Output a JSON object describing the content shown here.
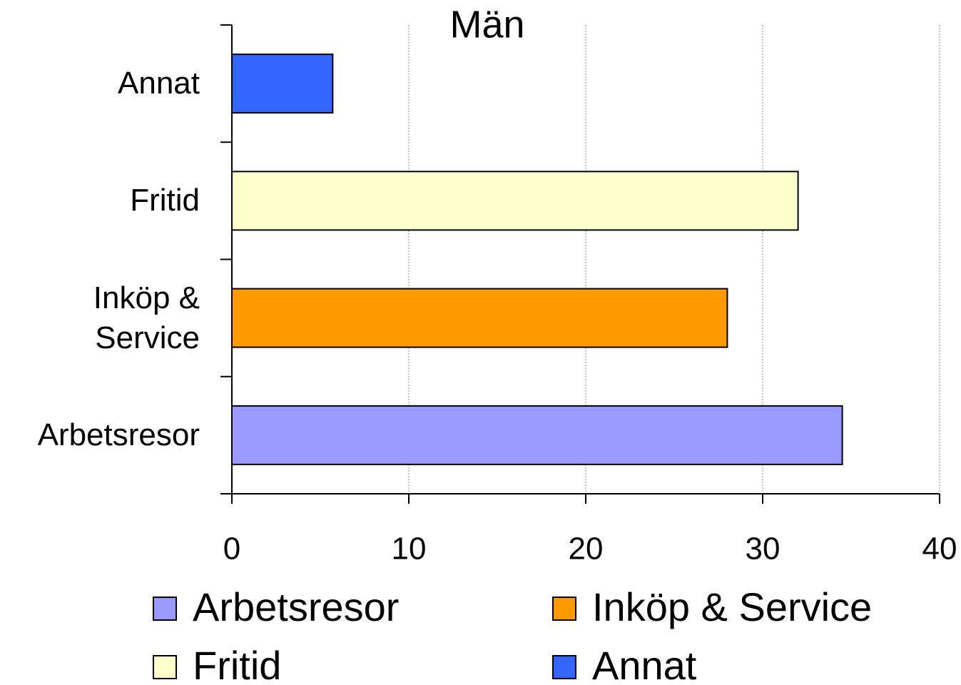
{
  "chart_data": {
    "type": "barh",
    "title": "Män",
    "categories": [
      "Arbetsresor",
      "Inköp & Service",
      "Fritid",
      "Annat"
    ],
    "values": [
      34.5,
      28,
      32,
      5.7
    ],
    "colors": [
      "#9999ff",
      "#ff9900",
      "#ffffcc",
      "#3366ff"
    ],
    "xlim": [
      0,
      40
    ],
    "xticks": [
      0,
      10,
      20,
      30,
      40
    ],
    "grid": true,
    "legend": "bottom"
  }
}
